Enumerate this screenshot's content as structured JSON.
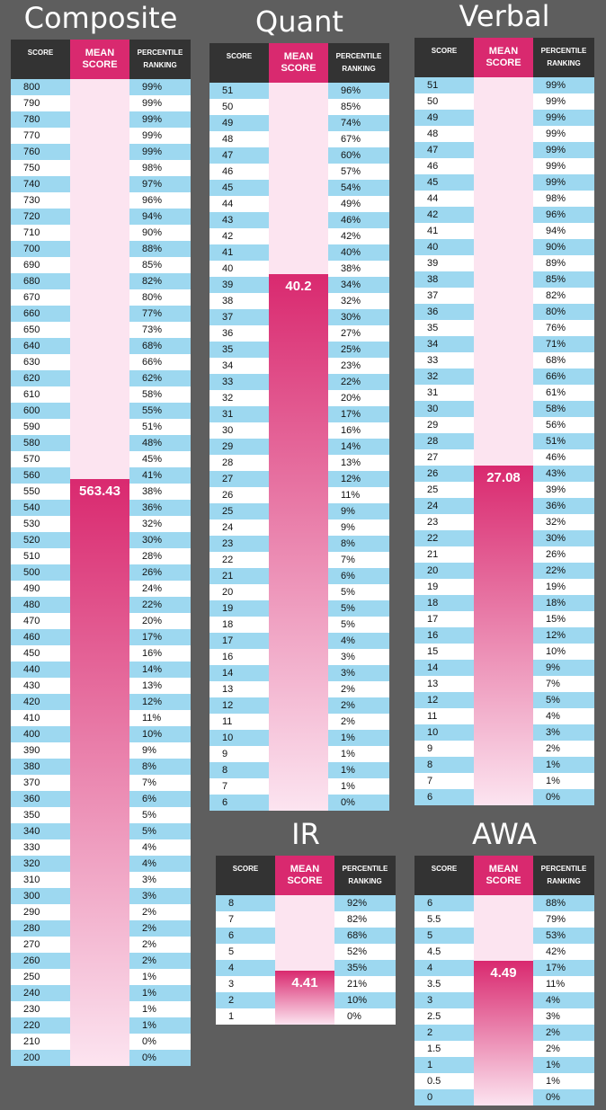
{
  "headers": {
    "score": "SCORE",
    "mean": "MEAN SCORE",
    "percentile": "PERCENTILE RANKING"
  },
  "colors": {
    "background": "#5e5e5e",
    "row_alt": "#9dd8f0",
    "mean_accent": "#d9296f",
    "mean_light": "#fce4f0",
    "header": "#333333"
  },
  "chart_data": [
    {
      "type": "table",
      "title": "Composite",
      "mean": 563.43,
      "mean_label": "563.43",
      "scores": [
        "800",
        "790",
        "780",
        "770",
        "760",
        "750",
        "740",
        "730",
        "720",
        "710",
        "700",
        "690",
        "680",
        "670",
        "660",
        "650",
        "640",
        "630",
        "620",
        "610",
        "600",
        "590",
        "580",
        "570",
        "560",
        "550",
        "540",
        "530",
        "520",
        "510",
        "500",
        "490",
        "480",
        "470",
        "460",
        "450",
        "440",
        "430",
        "420",
        "410",
        "400",
        "390",
        "380",
        "370",
        "360",
        "350",
        "340",
        "330",
        "320",
        "310",
        "300",
        "290",
        "280",
        "270",
        "260",
        "250",
        "240",
        "230",
        "220",
        "210",
        "200"
      ],
      "percentiles": [
        "99%",
        "99%",
        "99%",
        "99%",
        "99%",
        "98%",
        "97%",
        "96%",
        "94%",
        "90%",
        "88%",
        "85%",
        "82%",
        "80%",
        "77%",
        "73%",
        "68%",
        "66%",
        "62%",
        "58%",
        "55%",
        "51%",
        "48%",
        "45%",
        "41%",
        "38%",
        "36%",
        "32%",
        "30%",
        "28%",
        "26%",
        "24%",
        "22%",
        "20%",
        "17%",
        "16%",
        "14%",
        "13%",
        "12%",
        "11%",
        "10%",
        "9%",
        "8%",
        "7%",
        "6%",
        "5%",
        "5%",
        "4%",
        "4%",
        "3%",
        "3%",
        "2%",
        "2%",
        "2%",
        "2%",
        "1%",
        "1%",
        "1%",
        "1%",
        "0%",
        "0%"
      ]
    },
    {
      "type": "table",
      "title": "Quant",
      "mean": 40.2,
      "mean_label": "40.2",
      "scores": [
        "51",
        "50",
        "49",
        "48",
        "47",
        "46",
        "45",
        "44",
        "43",
        "42",
        "41",
        "40",
        "39",
        "38",
        "37",
        "36",
        "35",
        "34",
        "33",
        "32",
        "31",
        "30",
        "29",
        "28",
        "27",
        "26",
        "25",
        "24",
        "23",
        "22",
        "21",
        "20",
        "19",
        "18",
        "17",
        "16",
        "14",
        "13",
        "12",
        "11",
        "10",
        "9",
        "8",
        "7",
        "6"
      ],
      "percentiles": [
        "96%",
        "85%",
        "74%",
        "67%",
        "60%",
        "57%",
        "54%",
        "49%",
        "46%",
        "42%",
        "40%",
        "38%",
        "34%",
        "32%",
        "30%",
        "27%",
        "25%",
        "23%",
        "22%",
        "20%",
        "17%",
        "16%",
        "14%",
        "13%",
        "12%",
        "11%",
        "9%",
        "9%",
        "8%",
        "7%",
        "6%",
        "5%",
        "5%",
        "5%",
        "4%",
        "3%",
        "3%",
        "2%",
        "2%",
        "2%",
        "1%",
        "1%",
        "1%",
        "1%",
        "0%"
      ]
    },
    {
      "type": "table",
      "title": "Verbal",
      "mean": 27.08,
      "mean_label": "27.08",
      "scores": [
        "51",
        "50",
        "49",
        "48",
        "47",
        "46",
        "45",
        "44",
        "42",
        "41",
        "40",
        "39",
        "38",
        "37",
        "36",
        "35",
        "34",
        "33",
        "32",
        "31",
        "30",
        "29",
        "28",
        "27",
        "26",
        "25",
        "24",
        "23",
        "22",
        "21",
        "20",
        "19",
        "18",
        "17",
        "16",
        "15",
        "14",
        "13",
        "12",
        "11",
        "10",
        "9",
        "8",
        "7",
        "6"
      ],
      "percentiles": [
        "99%",
        "99%",
        "99%",
        "99%",
        "99%",
        "99%",
        "99%",
        "98%",
        "96%",
        "94%",
        "90%",
        "89%",
        "85%",
        "82%",
        "80%",
        "76%",
        "71%",
        "68%",
        "66%",
        "61%",
        "58%",
        "56%",
        "51%",
        "46%",
        "43%",
        "39%",
        "36%",
        "32%",
        "30%",
        "26%",
        "22%",
        "19%",
        "18%",
        "15%",
        "12%",
        "10%",
        "9%",
        "7%",
        "5%",
        "4%",
        "3%",
        "2%",
        "1%",
        "1%",
        "0%"
      ]
    },
    {
      "type": "table",
      "title": "IR",
      "mean": 4.41,
      "mean_label": "4.41",
      "scores": [
        "8",
        "7",
        "6",
        "5",
        "4",
        "3",
        "2",
        "1"
      ],
      "percentiles": [
        "92%",
        "82%",
        "68%",
        "52%",
        "35%",
        "21%",
        "10%",
        "0%"
      ]
    },
    {
      "type": "table",
      "title": "AWA",
      "mean": 4.49,
      "mean_label": "4.49",
      "scores": [
        "6",
        "5.5",
        "5",
        "4.5",
        "4",
        "3.5",
        "3",
        "2.5",
        "2",
        "1.5",
        "1",
        "0.5",
        "0"
      ],
      "percentiles": [
        "88%",
        "79%",
        "53%",
        "42%",
        "17%",
        "11%",
        "4%",
        "3%",
        "2%",
        "2%",
        "1%",
        "1%",
        "0%"
      ]
    }
  ]
}
